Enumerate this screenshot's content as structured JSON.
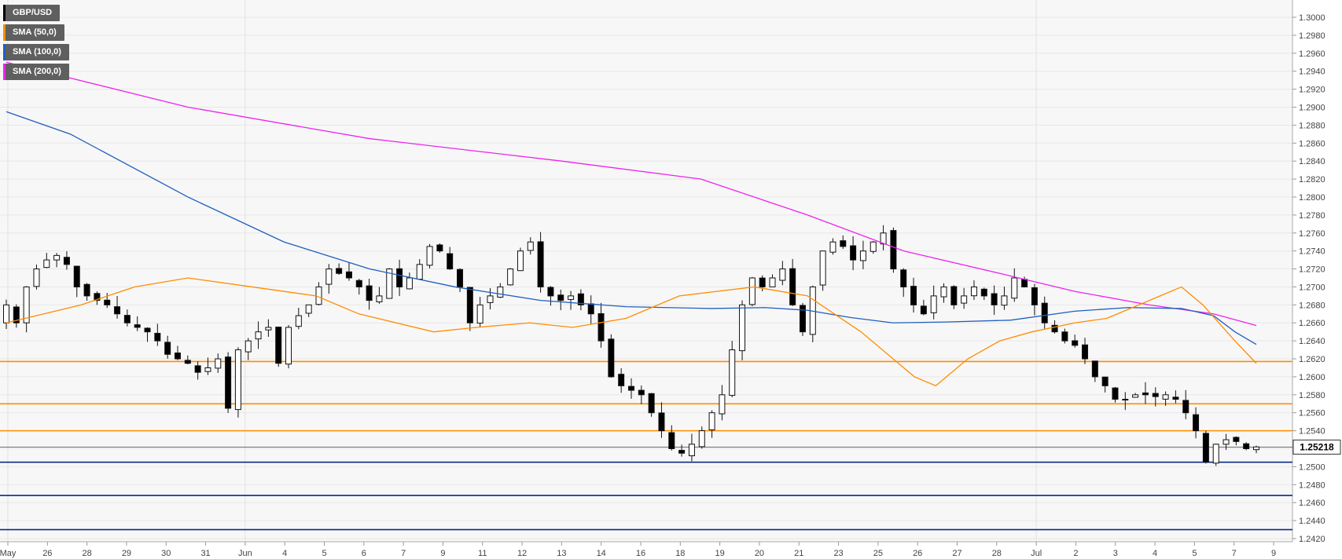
{
  "chart_data": {
    "type": "candlestick",
    "symbol": "GBP/USD",
    "legend": [
      {
        "label": "GBP/USD",
        "color": "#000000"
      },
      {
        "label": "SMA (50,0)",
        "color": "#ff8c00"
      },
      {
        "label": "SMA (100,0)",
        "color": "#1f5fbf"
      },
      {
        "label": "SMA (200,0)",
        "color": "#ee22ee"
      }
    ],
    "ylim": [
      1.242,
      1.3
    ],
    "y_ticks": [
      "1.3000",
      "1.2980",
      "1.2960",
      "1.2940",
      "1.2920",
      "1.2900",
      "1.2880",
      "1.2860",
      "1.2840",
      "1.2820",
      "1.2800",
      "1.2780",
      "1.2760",
      "1.2740",
      "1.2720",
      "1.2700",
      "1.2680",
      "1.2660",
      "1.2640",
      "1.2620",
      "1.2600",
      "1.2580",
      "1.2560",
      "1.2540",
      "1.2520",
      "1.2500",
      "1.2480",
      "1.2460",
      "1.2440",
      "1.2420"
    ],
    "x_labels": [
      "May",
      "26",
      "28",
      "29",
      "30",
      "31",
      "Jun",
      "4",
      "5",
      "6",
      "7",
      "9",
      "11",
      "12",
      "13",
      "14",
      "16",
      "18",
      "19",
      "20",
      "21",
      "23",
      "25",
      "26",
      "27",
      "28",
      "Jul",
      "2",
      "3",
      "4",
      "5",
      "7",
      "9"
    ],
    "current_price": "1.25218",
    "levels": {
      "resistance": [
        1.2617,
        1.257,
        1.254
      ],
      "support": [
        1.2505,
        1.2468,
        1.243
      ]
    },
    "grid": true,
    "candles_close": [
      1.268,
      1.266,
      1.27,
      1.272,
      1.273,
      1.2735,
      1.2725,
      1.27,
      1.269,
      1.2685,
      1.268,
      1.267,
      1.266,
      1.2655,
      1.265,
      1.264,
      1.2625,
      1.262,
      1.2615,
      1.2605,
      1.261,
      1.262,
      1.2565,
      1.263,
      1.264,
      1.265,
      1.2655,
      1.2615,
      1.2655,
      1.2668,
      1.268,
      1.27,
      1.272,
      1.2715,
      1.271,
      1.27,
      1.2685,
      1.269,
      1.272,
      1.27,
      1.271,
      1.2725,
      1.2745,
      1.274,
      1.272,
      1.27,
      1.266,
      1.268,
      1.269,
      1.27,
      1.272,
      1.274,
      1.275,
      1.27,
      1.269,
      1.2685,
      1.269,
      1.268,
      1.267,
      1.264,
      1.26,
      1.259,
      1.2585,
      1.258,
      1.256,
      1.254,
      1.252,
      1.2515,
      1.2525,
      1.254,
      1.256,
      1.258,
      1.263,
      1.268,
      1.271,
      1.27,
      1.271,
      1.272,
      1.268,
      1.265,
      1.27,
      1.274,
      1.275,
      1.2745,
      1.273,
      1.274,
      1.275,
      1.276,
      1.272,
      1.27,
      1.268,
      1.267,
      1.269,
      1.27,
      1.268,
      1.269,
      1.27,
      1.269,
      1.268,
      1.269,
      1.271,
      1.27,
      1.268,
      1.266,
      1.265,
      1.264,
      1.2635,
      1.262,
      1.26,
      1.259,
      1.2575,
      1.2575,
      1.258,
      1.258,
      1.2578,
      1.258,
      1.2575,
      1.256,
      1.254,
      1.2505,
      1.2525,
      1.253,
      1.2528,
      1.252,
      1.2522
    ],
    "sma50": [
      1.266,
      1.268,
      1.27,
      1.271,
      1.27,
      1.269,
      1.267,
      1.265,
      1.2655,
      1.266,
      1.2655,
      1.2665,
      1.269,
      1.27,
      1.269,
      1.265,
      1.26,
      1.259,
      1.262,
      1.264,
      1.265,
      1.266,
      1.2665,
      1.268,
      1.269,
      1.27,
      1.268,
      1.264,
      1.2615
    ],
    "sma50_x": [
      0.0,
      0.07,
      0.12,
      0.17,
      0.23,
      0.29,
      0.33,
      0.4,
      0.44,
      0.49,
      0.53,
      0.58,
      0.63,
      0.7,
      0.75,
      0.8,
      0.85,
      0.87,
      0.9,
      0.93,
      0.96,
      1.0,
      1.03,
      1.06,
      1.08,
      1.1,
      1.12,
      1.15,
      1.17
    ],
    "sma100": [
      1.2895,
      1.287,
      1.28,
      1.275,
      1.272,
      1.27,
      1.2685,
      1.2678,
      1.2676,
      1.2677,
      1.2674,
      1.2666,
      1.266,
      1.2661,
      1.2663,
      1.2673,
      1.2677,
      1.2676,
      1.2668,
      1.265,
      1.2636
    ],
    "sma100_x": [
      0.0,
      0.06,
      0.17,
      0.26,
      0.34,
      0.42,
      0.5,
      0.58,
      0.66,
      0.71,
      0.75,
      0.79,
      0.83,
      0.88,
      0.94,
      1.0,
      1.05,
      1.1,
      1.13,
      1.15,
      1.17
    ],
    "sma200": [
      1.295,
      1.29,
      1.2865,
      1.284,
      1.282,
      1.278,
      1.274,
      1.2715,
      1.2695,
      1.268,
      1.267,
      1.2657
    ],
    "sma200_x": [
      0.0,
      0.17,
      0.34,
      0.52,
      0.65,
      0.75,
      0.84,
      0.93,
      1.0,
      1.07,
      1.13,
      1.17
    ]
  }
}
